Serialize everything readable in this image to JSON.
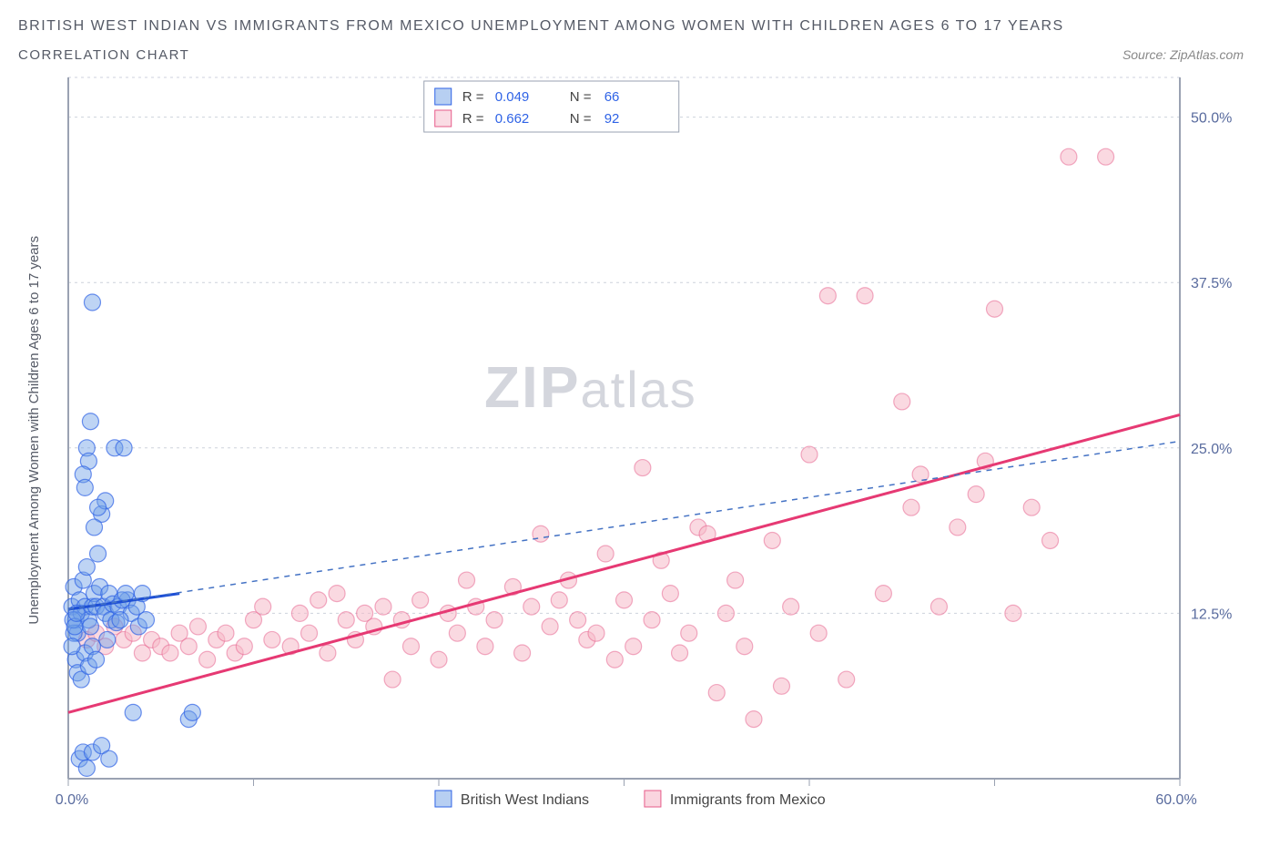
{
  "title_line1": "BRITISH WEST INDIAN VS IMMIGRANTS FROM MEXICO UNEMPLOYMENT AMONG WOMEN WITH CHILDREN AGES 6 TO 17 YEARS",
  "subtitle": "CORRELATION CHART",
  "source": "Source: ZipAtlas.com",
  "watermark_big": "ZIP",
  "watermark_small": "atlas",
  "chart": {
    "type": "scatter",
    "background_color": "#ffffff",
    "grid_color": "#cdd2dc",
    "axis_color": "#9aa2b2",
    "tick_label_color": "#596b9e",
    "ylabel": "Unemployment Among Women with Children Ages 6 to 17 years",
    "xlim": [
      0,
      60
    ],
    "ylim": [
      0,
      53
    ],
    "xtick_step": 10,
    "x_start_label": "0.0%",
    "x_end_label": "60.0%",
    "yticks": [
      12.5,
      25.0,
      37.5,
      50.0
    ],
    "ytick_labels": [
      "12.5%",
      "25.0%",
      "37.5%",
      "50.0%"
    ],
    "marker_radius": 9,
    "series": {
      "british": {
        "label": "British West Indians",
        "fill": "#6fa0e6",
        "stroke": "#2f63e6",
        "R": "0.049",
        "N": "66",
        "trend_solid": {
          "x1": 0,
          "y1": 12.8,
          "x2": 6,
          "y2": 14.0
        },
        "trend_dash": {
          "x1": 0,
          "y1": 12.8,
          "x2": 60,
          "y2": 25.5
        },
        "points": [
          [
            0.2,
            13.0
          ],
          [
            0.3,
            14.5
          ],
          [
            0.4,
            12.0
          ],
          [
            0.5,
            11.0
          ],
          [
            0.6,
            13.5
          ],
          [
            0.7,
            12.5
          ],
          [
            0.8,
            15.0
          ],
          [
            0.9,
            13.0
          ],
          [
            1.0,
            16.0
          ],
          [
            1.1,
            12.0
          ],
          [
            1.2,
            11.5
          ],
          [
            1.3,
            13.0
          ],
          [
            1.4,
            14.0
          ],
          [
            1.5,
            13.0
          ],
          [
            1.6,
            17.0
          ],
          [
            1.7,
            14.5
          ],
          [
            1.8,
            20.0
          ],
          [
            1.9,
            13.0
          ],
          [
            2.0,
            21.0
          ],
          [
            2.0,
            12.5
          ],
          [
            2.1,
            10.5
          ],
          [
            2.2,
            14.0
          ],
          [
            2.3,
            12.0
          ],
          [
            2.4,
            13.2
          ],
          [
            2.5,
            25.0
          ],
          [
            2.6,
            11.8
          ],
          [
            2.7,
            13.0
          ],
          [
            1.0,
            25.0
          ],
          [
            1.1,
            24.0
          ],
          [
            1.2,
            27.0
          ],
          [
            0.8,
            23.0
          ],
          [
            0.9,
            22.0
          ],
          [
            1.3,
            36.0
          ],
          [
            3.0,
            25.0
          ],
          [
            3.2,
            13.5
          ],
          [
            3.4,
            12.5
          ],
          [
            3.5,
            5.0
          ],
          [
            3.7,
            13.0
          ],
          [
            3.8,
            11.5
          ],
          [
            4.0,
            14.0
          ],
          [
            4.2,
            12.0
          ],
          [
            2.8,
            12.0
          ],
          [
            2.9,
            13.5
          ],
          [
            3.1,
            14.0
          ],
          [
            1.4,
            19.0
          ],
          [
            1.6,
            20.5
          ],
          [
            0.6,
            1.5
          ],
          [
            0.8,
            2.0
          ],
          [
            1.0,
            0.8
          ],
          [
            1.3,
            2.0
          ],
          [
            1.8,
            2.5
          ],
          [
            2.2,
            1.5
          ],
          [
            6.5,
            4.5
          ],
          [
            6.7,
            5.0
          ],
          [
            0.4,
            9.0
          ],
          [
            0.5,
            8.0
          ],
          [
            0.7,
            7.5
          ],
          [
            0.9,
            9.5
          ],
          [
            1.1,
            8.5
          ],
          [
            1.3,
            10.0
          ],
          [
            1.5,
            9.0
          ],
          [
            0.3,
            11.0
          ],
          [
            0.2,
            10.0
          ],
          [
            0.25,
            12.0
          ],
          [
            0.35,
            11.5
          ],
          [
            0.45,
            12.5
          ]
        ]
      },
      "mexico": {
        "label": "Immigrants from Mexico",
        "fill": "#f6b9c9",
        "stroke": "#e65b8a",
        "R": "0.662",
        "N": "92",
        "trend": {
          "x1": 0,
          "y1": 5.0,
          "x2": 60,
          "y2": 27.5
        },
        "points": [
          [
            1.0,
            10.5
          ],
          [
            1.5,
            11.0
          ],
          [
            2.0,
            10.0
          ],
          [
            2.5,
            11.5
          ],
          [
            3.0,
            10.5
          ],
          [
            3.5,
            11.0
          ],
          [
            4.0,
            9.5
          ],
          [
            4.5,
            10.5
          ],
          [
            5.0,
            10.0
          ],
          [
            5.5,
            9.5
          ],
          [
            6.0,
            11.0
          ],
          [
            6.5,
            10.0
          ],
          [
            7.0,
            11.5
          ],
          [
            7.5,
            9.0
          ],
          [
            8.0,
            10.5
          ],
          [
            8.5,
            11.0
          ],
          [
            9.0,
            9.5
          ],
          [
            9.5,
            10.0
          ],
          [
            10.0,
            12.0
          ],
          [
            10.5,
            13.0
          ],
          [
            11.0,
            10.5
          ],
          [
            12.0,
            10.0
          ],
          [
            12.5,
            12.5
          ],
          [
            13.0,
            11.0
          ],
          [
            13.5,
            13.5
          ],
          [
            14.0,
            9.5
          ],
          [
            14.5,
            14.0
          ],
          [
            15.0,
            12.0
          ],
          [
            15.5,
            10.5
          ],
          [
            16.0,
            12.5
          ],
          [
            16.5,
            11.5
          ],
          [
            17.0,
            13.0
          ],
          [
            17.5,
            7.5
          ],
          [
            18.0,
            12.0
          ],
          [
            18.5,
            10.0
          ],
          [
            19.0,
            13.5
          ],
          [
            20.0,
            9.0
          ],
          [
            20.5,
            12.5
          ],
          [
            21.0,
            11.0
          ],
          [
            22.0,
            13.0
          ],
          [
            22.5,
            10.0
          ],
          [
            23.0,
            12.0
          ],
          [
            24.0,
            14.5
          ],
          [
            24.5,
            9.5
          ],
          [
            25.0,
            13.0
          ],
          [
            25.5,
            18.5
          ],
          [
            26.0,
            11.5
          ],
          [
            27.0,
            15.0
          ],
          [
            27.5,
            12.0
          ],
          [
            28.0,
            10.5
          ],
          [
            28.5,
            11.0
          ],
          [
            29.0,
            17.0
          ],
          [
            29.5,
            9.0
          ],
          [
            30.0,
            13.5
          ],
          [
            30.5,
            10.0
          ],
          [
            31.0,
            23.5
          ],
          [
            31.5,
            12.0
          ],
          [
            32.0,
            16.5
          ],
          [
            32.5,
            14.0
          ],
          [
            33.0,
            9.5
          ],
          [
            33.5,
            11.0
          ],
          [
            34.0,
            19.0
          ],
          [
            35.0,
            6.5
          ],
          [
            35.5,
            12.5
          ],
          [
            36.0,
            15.0
          ],
          [
            36.5,
            10.0
          ],
          [
            37.0,
            4.5
          ],
          [
            38.0,
            18.0
          ],
          [
            38.5,
            7.0
          ],
          [
            39.0,
            13.0
          ],
          [
            40.0,
            24.5
          ],
          [
            40.5,
            11.0
          ],
          [
            41.0,
            36.5
          ],
          [
            42.0,
            7.5
          ],
          [
            43.0,
            36.5
          ],
          [
            44.0,
            14.0
          ],
          [
            45.0,
            28.5
          ],
          [
            45.5,
            20.5
          ],
          [
            46.0,
            23.0
          ],
          [
            47.0,
            13.0
          ],
          [
            48.0,
            19.0
          ],
          [
            49.0,
            21.5
          ],
          [
            50.0,
            35.5
          ],
          [
            51.0,
            12.5
          ],
          [
            52.0,
            20.5
          ],
          [
            53.0,
            18.0
          ],
          [
            54.0,
            47.0
          ],
          [
            56.0,
            47.0
          ],
          [
            49.5,
            24.0
          ],
          [
            34.5,
            18.5
          ],
          [
            26.5,
            13.5
          ],
          [
            21.5,
            15.0
          ]
        ]
      }
    }
  },
  "legend_labels": {
    "R": "R =",
    "N": "N ="
  }
}
